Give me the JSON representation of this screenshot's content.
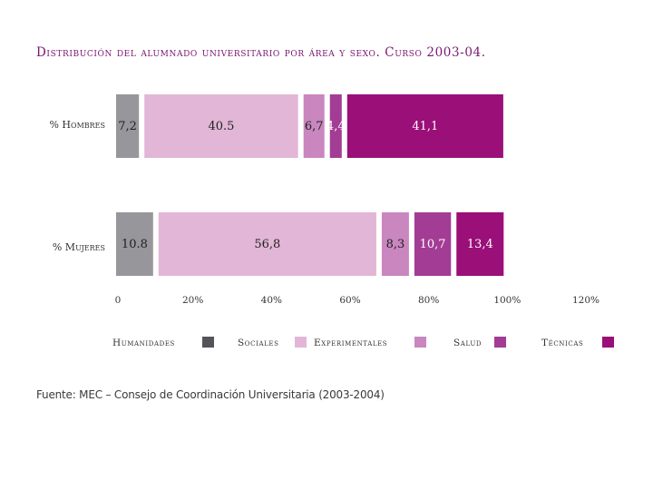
{
  "chart_data": {
    "type": "bar",
    "orientation": "horizontal",
    "stacked": true,
    "title": "Distribución del alumnado universitario por área y sexo. Curso 2003-04.",
    "categories": [
      "% Hombres",
      "% Mujeres"
    ],
    "series": [
      {
        "name": "Humanidades",
        "color": "#96969b",
        "values": [
          7.2,
          10.8
        ],
        "labels": [
          "7,2",
          "10.8"
        ]
      },
      {
        "name": "Sociales",
        "color": "#e2b6d6",
        "values": [
          40.5,
          56.8
        ],
        "labels": [
          "40.5",
          "56,8"
        ]
      },
      {
        "name": "Experimentales",
        "color": "#c986bf",
        "values": [
          6.7,
          8.3
        ],
        "labels": [
          "6,7",
          "8,3"
        ]
      },
      {
        "name": "Salud",
        "color": "#a33c95",
        "values": [
          4.4,
          10.7
        ],
        "labels": [
          "4,4",
          "10,7"
        ]
      },
      {
        "name": "Técnicas",
        "color": "#9a0f78",
        "values": [
          41.1,
          13.4
        ],
        "labels": [
          "41,1",
          "13,4"
        ]
      }
    ],
    "xticks": [
      "0",
      "20%",
      "40%",
      "60%",
      "80%",
      "100%",
      "120%"
    ],
    "xlim": [
      0,
      120
    ],
    "grid": false,
    "legend_position": "bottom",
    "legend_colors": [
      "#555559",
      "#e2b6d6",
      "#c986bf",
      "#a33c95",
      "#9a0f78"
    ]
  },
  "source": "Fuente: MEC – Consejo de Coordinación Universitaria (2003-2004)"
}
